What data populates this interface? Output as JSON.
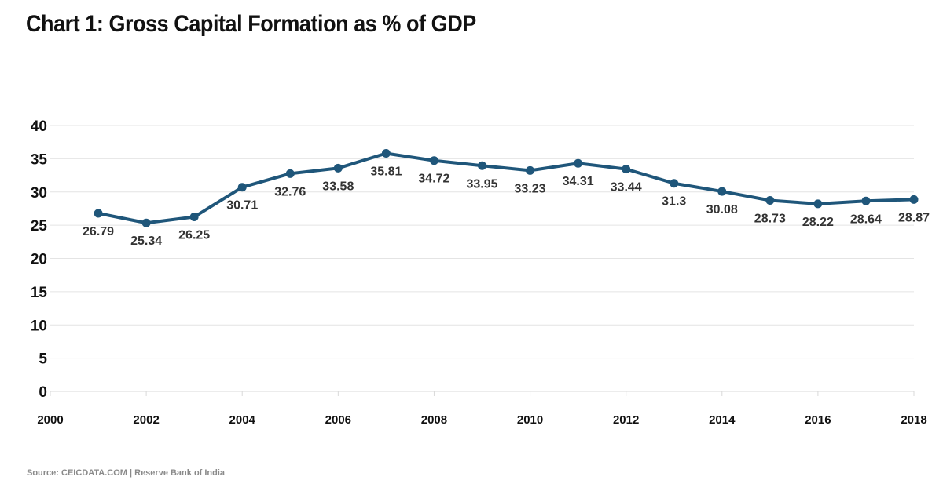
{
  "chart_data": {
    "type": "line",
    "title": "Chart 1: Gross Capital Formation as % of GDP",
    "source": "Source: CEICDATA.COM | Reserve Bank of India",
    "xlabel": "",
    "ylabel": "",
    "xlim": [
      2000,
      2018
    ],
    "ylim": [
      0,
      40
    ],
    "x_ticks": [
      "2000",
      "2002",
      "2004",
      "2006",
      "2008",
      "2010",
      "2012",
      "2014",
      "2016",
      "2018"
    ],
    "y_ticks": [
      "0",
      "5",
      "10",
      "15",
      "20",
      "25",
      "30",
      "35",
      "40"
    ],
    "grid": true,
    "line_color": "#1f567a",
    "series": [
      {
        "x": [
          2001,
          2002,
          2003,
          2004,
          2005,
          2006,
          2007,
          2008,
          2009,
          2010,
          2011,
          2012,
          2013,
          2014,
          2015,
          2016,
          2017,
          2018
        ],
        "values": [
          26.79,
          25.34,
          26.25,
          30.71,
          32.76,
          33.58,
          35.81,
          34.72,
          33.95,
          33.23,
          34.31,
          33.44,
          31.3,
          30.08,
          28.73,
          28.22,
          28.64,
          28.87
        ],
        "labels": [
          "26.79",
          "25.34",
          "26.25",
          "30.71",
          "32.76",
          "33.58",
          "35.81",
          "34.72",
          "33.95",
          "33.23",
          "34.31",
          "33.44",
          "31.3",
          "30.08",
          "28.73",
          "28.22",
          "28.64",
          "28.87"
        ]
      }
    ]
  }
}
